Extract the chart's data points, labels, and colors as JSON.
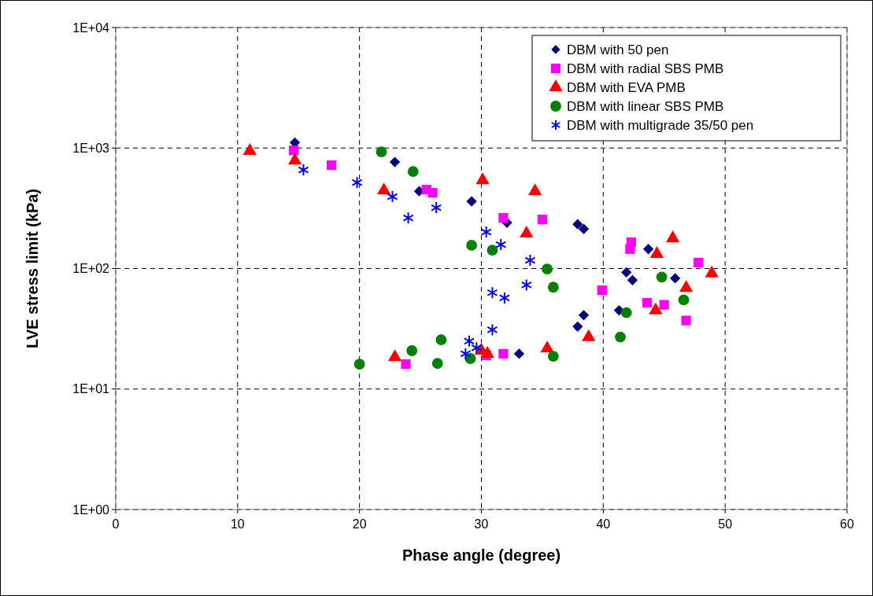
{
  "chart_data": {
    "type": "scatter",
    "xlabel": "Phase angle (degree)",
    "ylabel": "LVE stress limit (kPa)",
    "log": "y",
    "grid": true,
    "legend": "top right",
    "xlim": [
      0,
      60
    ],
    "xticks": [
      0,
      10,
      20,
      30,
      40,
      50,
      60
    ],
    "ylim": [
      1,
      10000
    ],
    "yticks": [
      {
        "value": 1,
        "label": "1E+00"
      },
      {
        "value": 10,
        "label": "1E+01"
      },
      {
        "value": 100,
        "label": "1E+02"
      },
      {
        "value": 1000,
        "label": "1E+03"
      },
      {
        "value": 10000,
        "label": "1E+04"
      }
    ],
    "series": [
      {
        "name": "DBM with 50 pen",
        "color": "#000080",
        "marker": "diamond",
        "x": [
          14.7,
          22.9,
          24.9,
          29.2,
          32.1,
          33.1,
          37.9,
          37.9,
          38.4,
          38.4,
          41.3,
          41.9,
          42.4,
          43.7,
          45.9
        ],
        "values": [
          1110,
          765,
          438,
          361,
          240,
          19.6,
          233,
          33,
          213,
          41,
          45,
          93,
          80,
          145,
          83
        ]
      },
      {
        "name": "DBM with radial SBS PMB",
        "color": "#ff00ff",
        "marker": "square",
        "x": [
          14.6,
          17.7,
          25.5,
          26.0,
          31.8,
          35.0,
          42.3,
          42.2,
          47.8,
          39.9,
          43.6,
          45.0,
          46.8,
          23.8,
          30.4,
          31.8
        ],
        "values": [
          956,
          720,
          452,
          425,
          263,
          255,
          165,
          145,
          112,
          66,
          52,
          50,
          37,
          16.1,
          19.0,
          19.6
        ]
      },
      {
        "name": "DBM with EVA PMB",
        "color": "#ff0000",
        "marker": "triangle",
        "x": [
          11.0,
          14.7,
          22.0,
          30.1,
          34.4,
          33.7,
          45.7,
          44.4,
          48.9,
          46.8,
          44.3,
          38.8,
          22.9,
          30.0,
          30.5,
          35.4
        ],
        "values": [
          944,
          787,
          445,
          541,
          438,
          195,
          178,
          132,
          91,
          69,
          45,
          27,
          18.4,
          20.8,
          19.6,
          21.7
        ]
      },
      {
        "name": "DBM with linear SBS PMB",
        "color": "#008000",
        "marker": "circle",
        "x": [
          21.8,
          24.4,
          29.2,
          30.9,
          35.4,
          35.9,
          44.8,
          46.6,
          41.9,
          41.4,
          20.0,
          24.3,
          26.7,
          26.4,
          29.1,
          35.9
        ],
        "values": [
          929,
          638,
          156,
          142,
          99,
          70,
          85,
          55,
          43,
          27,
          16.1,
          20.8,
          25.6,
          16.3,
          17.9,
          18.7
        ]
      },
      {
        "name": "DBM with multigrade 35/50 pen",
        "color": "#0000ff",
        "marker": "cross",
        "x": [
          15.4,
          19.8,
          22.7,
          24.0,
          26.3,
          30.4,
          31.6,
          34.0,
          30.9,
          31.9,
          33.7,
          30.9,
          29.0,
          29.6,
          28.7
        ],
        "values": [
          658,
          517,
          395,
          263,
          320,
          201,
          158,
          117,
          63,
          57,
          73,
          31,
          25,
          22,
          19.6
        ]
      }
    ]
  }
}
